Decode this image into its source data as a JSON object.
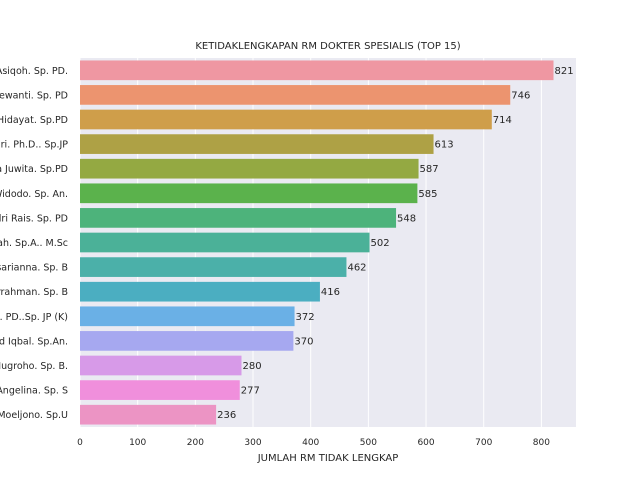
{
  "chart_data": {
    "type": "bar",
    "orientation": "horizontal",
    "title": "KETIDAKLENGKAPAN RM DOKTER SPESIALIS (TOP 15)",
    "xlabel": "JUMLAH RM TIDAK LENGKAP",
    "ylabel": "",
    "xlim": [
      0,
      860
    ],
    "xticks": [
      0,
      100,
      200,
      300,
      400,
      500,
      600,
      700,
      800
    ],
    "grid": true,
    "categories": [
      "Asiqoh. Sp. PD.",
      "Dewanti. Sp. PD",
      "Hidayat. Sp.PD",
      "ari. Ph.D.. Sp.JP",
      "a Juwita. Sp.PD",
      "Widodo. Sp. An.",
      "dri Rais. Sp. PD",
      "ah. Sp.A.. M.Sc",
      "esarianna. Sp. B",
      "urrahman. Sp. B",
      ". PD..Sp. JP (K)",
      "ad Iqbal. Sp.An.",
      "Nugroho. Sp. B.",
      "Angelina. Sp. S",
      "Moeljono. Sp.U"
    ],
    "values": [
      821,
      746,
      714,
      613,
      587,
      585,
      548,
      502,
      462,
      416,
      372,
      370,
      280,
      277,
      236
    ],
    "colors": [
      "#ef97a2",
      "#ec946f",
      "#cf9e4a",
      "#aea145",
      "#94a942",
      "#5bb24c",
      "#4db37b",
      "#4bb198",
      "#4bb0a9",
      "#4baec1",
      "#6ab0e6",
      "#a6a8f0",
      "#d79ae8",
      "#f08fdc",
      "#ec94c4"
    ],
    "background": "#eaeaf2"
  }
}
